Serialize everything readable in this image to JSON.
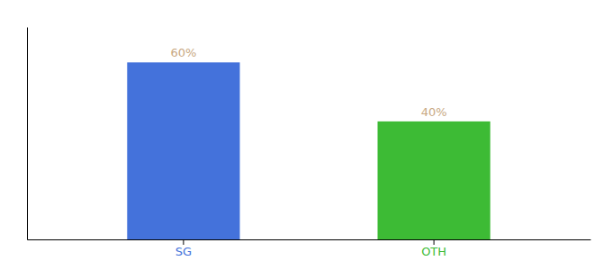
{
  "chart_data": {
    "type": "bar",
    "categories": [
      "SG",
      "OTH"
    ],
    "values": [
      60,
      40
    ],
    "value_labels": [
      "60%",
      "40%"
    ],
    "colors": [
      "#4472db",
      "#3dbb35"
    ],
    "ylim": [
      0,
      72
    ],
    "data_labels": true,
    "tick_labels": "x"
  }
}
